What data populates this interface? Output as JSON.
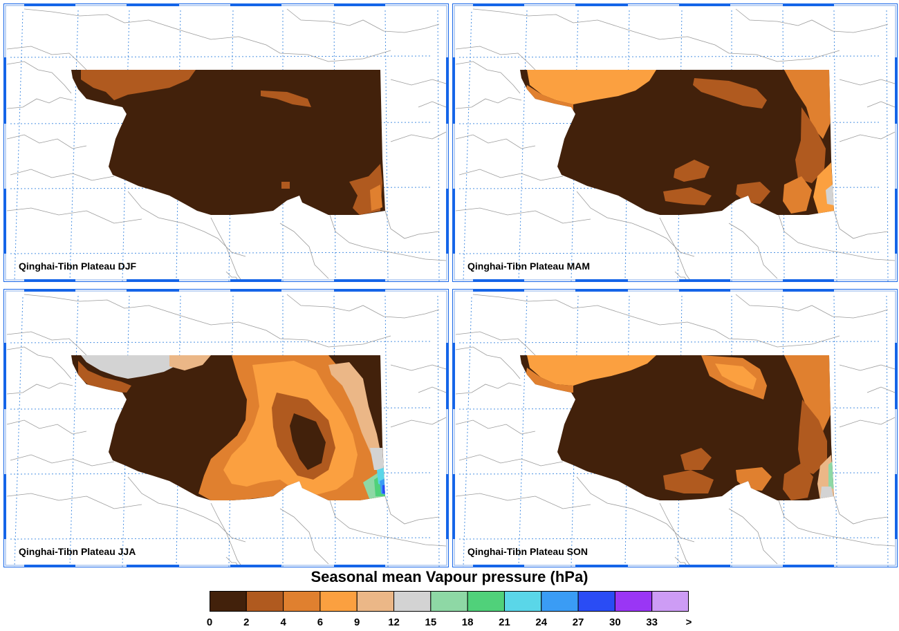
{
  "panels": [
    {
      "label": "Qinghai-Tibn Plateau DJF",
      "season": "DJF"
    },
    {
      "label": "Qinghai-Tibn Plateau MAM",
      "season": "MAM"
    },
    {
      "label": "Qinghai-Tibn Plateau JJA",
      "season": "JJA"
    },
    {
      "label": "Qinghai-Tibn Plateau SON",
      "season": "SON"
    }
  ],
  "legend": {
    "title": "Seasonal mean Vapour pressure (hPa)",
    "ticks": [
      "0",
      "2",
      "4",
      "6",
      "9",
      "12",
      "15",
      "18",
      "21",
      "24",
      "27",
      "30",
      "33",
      ">"
    ],
    "colors": [
      "#42210b",
      "#b05a1f",
      "#e0802f",
      "#fba040",
      "#ebb787",
      "#d3d3d3",
      "#8ed8a5",
      "#50d17a",
      "#5ad6e8",
      "#3a9cf5",
      "#2a4cf5",
      "#9a36f5",
      "#cd9cf5"
    ]
  },
  "colors": {
    "frame_blue": "#1565e8",
    "grid_blue": "#4a90e2",
    "coastline_gray": "#9a9a9a"
  }
}
